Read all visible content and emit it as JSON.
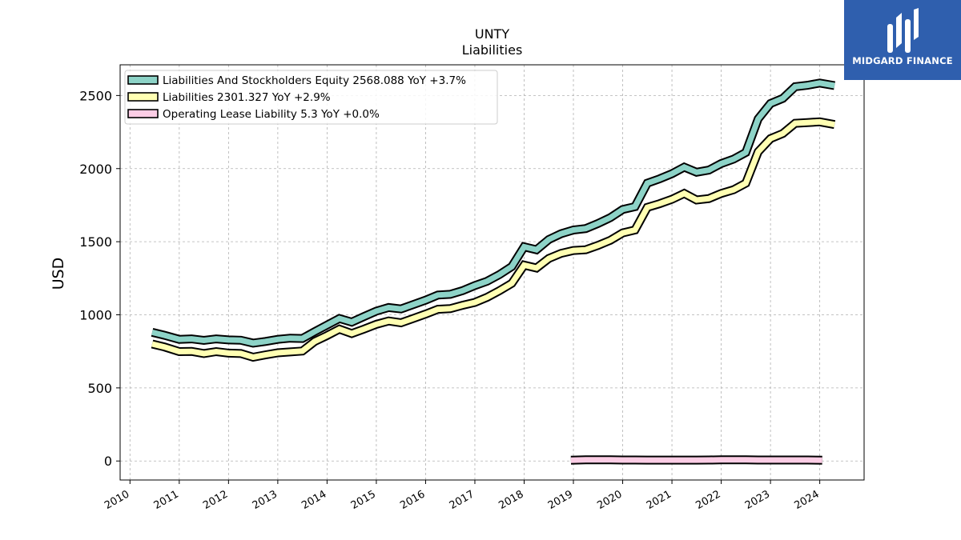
{
  "chart_data": {
    "type": "line",
    "title": "UNTY",
    "subtitle": "Liabilities",
    "ylabel": "USD",
    "xlabel": "",
    "ylim": [
      -130,
      2710
    ],
    "xlim": [
      2009.8,
      2024.9
    ],
    "yticks": [
      0,
      500,
      1000,
      1500,
      2000,
      2500
    ],
    "xticks": [
      2010,
      2011,
      2012,
      2013,
      2014,
      2015,
      2016,
      2017,
      2018,
      2019,
      2020,
      2021,
      2022,
      2023,
      2024
    ],
    "grid": true,
    "legend_position": "top-left",
    "series": [
      {
        "name": "Liabilities And Stockholders Equity  2568.088 YoY +3.7%",
        "color": "#8dd3c7",
        "points": [
          [
            2010.45,
            880
          ],
          [
            2010.7,
            860
          ],
          [
            2011.0,
            832
          ],
          [
            2011.25,
            835
          ],
          [
            2011.5,
            825
          ],
          [
            2011.75,
            835
          ],
          [
            2012.0,
            828
          ],
          [
            2012.25,
            826
          ],
          [
            2012.5,
            806
          ],
          [
            2012.75,
            818
          ],
          [
            2013.0,
            832
          ],
          [
            2013.25,
            840
          ],
          [
            2013.5,
            838
          ],
          [
            2013.75,
            885
          ],
          [
            2014.0,
            930
          ],
          [
            2014.25,
            975
          ],
          [
            2014.5,
            950
          ],
          [
            2014.75,
            988
          ],
          [
            2015.0,
            1025
          ],
          [
            2015.25,
            1050
          ],
          [
            2015.5,
            1040
          ],
          [
            2015.75,
            1070
          ],
          [
            2016.0,
            1100
          ],
          [
            2016.25,
            1135
          ],
          [
            2016.5,
            1140
          ],
          [
            2016.75,
            1165
          ],
          [
            2017.0,
            1200
          ],
          [
            2017.25,
            1230
          ],
          [
            2017.5,
            1275
          ],
          [
            2017.75,
            1330
          ],
          [
            2018.0,
            1465
          ],
          [
            2018.25,
            1445
          ],
          [
            2018.5,
            1515
          ],
          [
            2018.75,
            1555
          ],
          [
            2019.0,
            1580
          ],
          [
            2019.25,
            1590
          ],
          [
            2019.5,
            1625
          ],
          [
            2019.75,
            1665
          ],
          [
            2020.0,
            1720
          ],
          [
            2020.25,
            1740
          ],
          [
            2020.5,
            1900
          ],
          [
            2020.75,
            1930
          ],
          [
            2021.0,
            1965
          ],
          [
            2021.25,
            2010
          ],
          [
            2021.5,
            1975
          ],
          [
            2021.75,
            1990
          ],
          [
            2022.0,
            2035
          ],
          [
            2022.25,
            2065
          ],
          [
            2022.5,
            2110
          ],
          [
            2022.75,
            2340
          ],
          [
            2023.0,
            2445
          ],
          [
            2023.25,
            2480
          ],
          [
            2023.5,
            2560
          ],
          [
            2023.75,
            2570
          ],
          [
            2024.0,
            2585
          ],
          [
            2024.3,
            2568
          ]
        ]
      },
      {
        "name": "Liabilities  2301.327 YoY +2.9%",
        "color": "#ffffb3",
        "points": [
          [
            2010.45,
            800
          ],
          [
            2010.7,
            780
          ],
          [
            2011.0,
            748
          ],
          [
            2011.25,
            750
          ],
          [
            2011.5,
            735
          ],
          [
            2011.75,
            748
          ],
          [
            2012.0,
            738
          ],
          [
            2012.25,
            735
          ],
          [
            2012.5,
            710
          ],
          [
            2012.75,
            726
          ],
          [
            2013.0,
            740
          ],
          [
            2013.25,
            746
          ],
          [
            2013.5,
            752
          ],
          [
            2013.75,
            818
          ],
          [
            2014.0,
            858
          ],
          [
            2014.25,
            902
          ],
          [
            2014.5,
            872
          ],
          [
            2014.75,
            902
          ],
          [
            2015.0,
            935
          ],
          [
            2015.25,
            958
          ],
          [
            2015.5,
            945
          ],
          [
            2015.75,
            975
          ],
          [
            2016.0,
            1005
          ],
          [
            2016.25,
            1038
          ],
          [
            2016.5,
            1042
          ],
          [
            2016.75,
            1065
          ],
          [
            2017.0,
            1085
          ],
          [
            2017.25,
            1120
          ],
          [
            2017.5,
            1165
          ],
          [
            2017.75,
            1215
          ],
          [
            2018.0,
            1340
          ],
          [
            2018.25,
            1320
          ],
          [
            2018.5,
            1385
          ],
          [
            2018.75,
            1420
          ],
          [
            2019.0,
            1440
          ],
          [
            2019.25,
            1445
          ],
          [
            2019.5,
            1475
          ],
          [
            2019.75,
            1510
          ],
          [
            2020.0,
            1560
          ],
          [
            2020.25,
            1580
          ],
          [
            2020.5,
            1735
          ],
          [
            2020.75,
            1760
          ],
          [
            2021.0,
            1790
          ],
          [
            2021.25,
            1830
          ],
          [
            2021.5,
            1785
          ],
          [
            2021.75,
            1795
          ],
          [
            2022.0,
            1830
          ],
          [
            2022.25,
            1855
          ],
          [
            2022.5,
            1900
          ],
          [
            2022.75,
            2115
          ],
          [
            2023.0,
            2205
          ],
          [
            2023.25,
            2240
          ],
          [
            2023.5,
            2310
          ],
          [
            2023.75,
            2315
          ],
          [
            2024.0,
            2320
          ],
          [
            2024.3,
            2301
          ]
        ]
      },
      {
        "name": "Operating Lease Liability  5.3 YoY +0.0%",
        "color": "#fccde5",
        "points": [
          [
            2018.95,
            5
          ],
          [
            2019.25,
            8
          ],
          [
            2019.5,
            8
          ],
          [
            2019.75,
            8
          ],
          [
            2020.0,
            7
          ],
          [
            2020.25,
            7
          ],
          [
            2020.5,
            6
          ],
          [
            2020.75,
            6
          ],
          [
            2021.0,
            6
          ],
          [
            2021.25,
            6
          ],
          [
            2021.5,
            6
          ],
          [
            2021.75,
            7
          ],
          [
            2022.0,
            8
          ],
          [
            2022.25,
            8
          ],
          [
            2022.5,
            8
          ],
          [
            2022.75,
            7
          ],
          [
            2023.0,
            7
          ],
          [
            2023.25,
            7
          ],
          [
            2023.5,
            7
          ],
          [
            2023.75,
            7
          ],
          [
            2024.05,
            5.3
          ]
        ]
      }
    ]
  },
  "logo": {
    "text": "MIDGARD FINANCE",
    "background": "#2f5fae"
  }
}
